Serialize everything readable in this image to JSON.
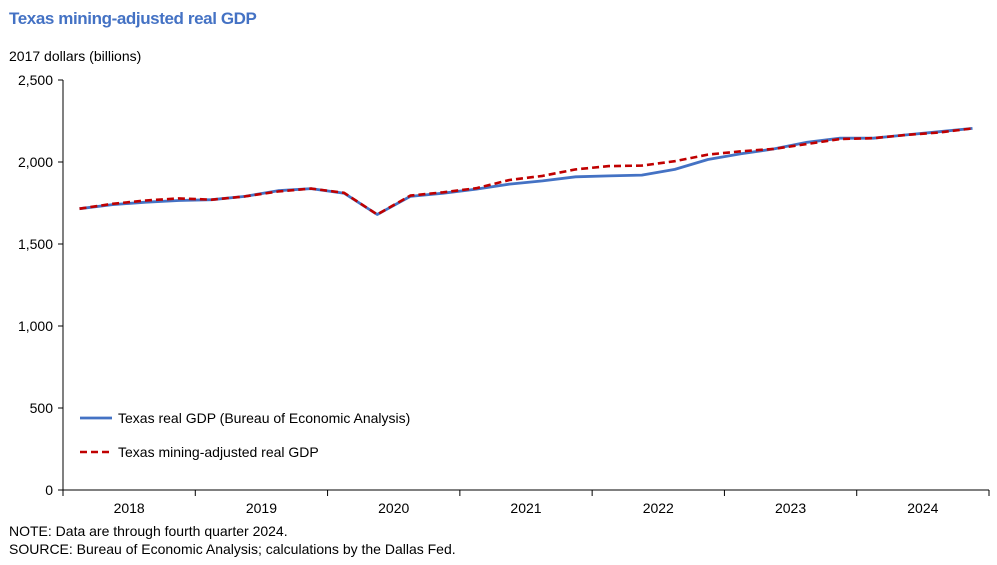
{
  "chart_data": {
    "type": "line",
    "title": "Texas mining-adjusted real GDP",
    "ylabel": "2017 dollars (billions)",
    "xlabel": "",
    "ylim": [
      0,
      2500
    ],
    "yticks": [
      0,
      500,
      1000,
      1500,
      2000,
      2500
    ],
    "ytick_labels": [
      "0",
      "500",
      "1,000",
      "1,500",
      "2,000",
      "2,500"
    ],
    "year_labels": [
      "2018",
      "2019",
      "2020",
      "2021",
      "2022",
      "2023",
      "2024"
    ],
    "x": [
      "2018Q1",
      "2018Q2",
      "2018Q3",
      "2018Q4",
      "2019Q1",
      "2019Q2",
      "2019Q3",
      "2019Q4",
      "2020Q1",
      "2020Q2",
      "2020Q3",
      "2020Q4",
      "2021Q1",
      "2021Q2",
      "2021Q3",
      "2021Q4",
      "2022Q1",
      "2022Q2",
      "2022Q3",
      "2022Q4",
      "2023Q1",
      "2023Q2",
      "2023Q3",
      "2023Q4",
      "2024Q1",
      "2024Q2",
      "2024Q3",
      "2024Q4"
    ],
    "series": [
      {
        "name": "Texas real GDP (Bureau of Economic Analysis)",
        "color": "#4472C4",
        "dash": "solid",
        "values": [
          1715,
          1740,
          1755,
          1765,
          1770,
          1790,
          1825,
          1838,
          1810,
          1680,
          1790,
          1810,
          1835,
          1865,
          1885,
          1910,
          1915,
          1920,
          1955,
          2015,
          2050,
          2080,
          2120,
          2145,
          2145,
          2165,
          2185,
          2205
        ]
      },
      {
        "name": "Texas mining-adjusted real GDP",
        "color": "#C00000",
        "dash": "dashed",
        "values": [
          1715,
          1745,
          1765,
          1778,
          1770,
          1790,
          1820,
          1838,
          1812,
          1680,
          1795,
          1815,
          1840,
          1890,
          1915,
          1955,
          1975,
          1978,
          2005,
          2045,
          2065,
          2080,
          2110,
          2140,
          2145,
          2165,
          2180,
          2205
        ]
      }
    ],
    "legend": "lower-left",
    "grid": false
  },
  "notes": {
    "note": "NOTE: Data are through fourth quarter 2024.",
    "source": "SOURCE: Bureau of Economic Analysis; calculations by the Dallas Fed."
  }
}
